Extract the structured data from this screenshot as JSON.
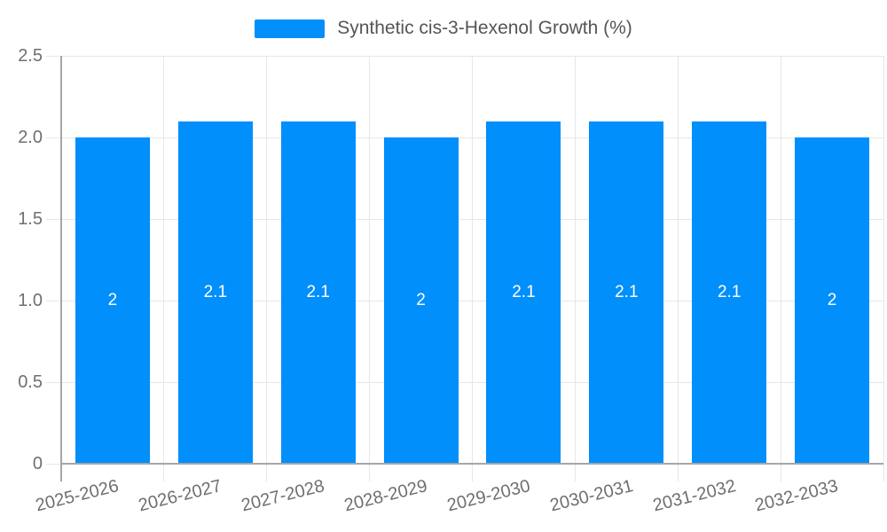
{
  "legend": {
    "label": "Synthetic cis-3-Hexenol Growth (%)"
  },
  "chart_data": {
    "type": "bar",
    "title": "",
    "xlabel": "",
    "ylabel": "",
    "legend_position": "top",
    "legend_entries": [
      "Synthetic cis-3-Hexenol Growth (%)"
    ],
    "categories": [
      "2025-2026",
      "2026-2027",
      "2027-2028",
      "2028-2029",
      "2029-2030",
      "2030-2031",
      "2031-2032",
      "2032-2033"
    ],
    "series": [
      {
        "name": "Synthetic cis-3-Hexenol Growth (%)",
        "values": [
          2,
          2.1,
          2.1,
          2,
          2.1,
          2.1,
          2.1,
          2
        ]
      }
    ],
    "value_labels": [
      "2",
      "2.1",
      "2.1",
      "2",
      "2.1",
      "2.1",
      "2.1",
      "2"
    ],
    "ylim": [
      0,
      2.5
    ],
    "y_ticks": [
      {
        "value": 2.5,
        "label": "2.5"
      },
      {
        "value": 2.0,
        "label": "2.0"
      },
      {
        "value": 1.5,
        "label": "1.5"
      },
      {
        "value": 1.0,
        "label": "1.0"
      },
      {
        "value": 0.5,
        "label": "0.5"
      },
      {
        "value": 0,
        "label": "0"
      }
    ],
    "grid": true,
    "colors": {
      "bar": "#008FFB",
      "grid": "#e7e7e7",
      "axis": "#a6a6a6",
      "tick_label": "#6f6f6f",
      "legend_text": "#555555",
      "value_label": "#ffffff",
      "background": "#ffffff"
    }
  }
}
